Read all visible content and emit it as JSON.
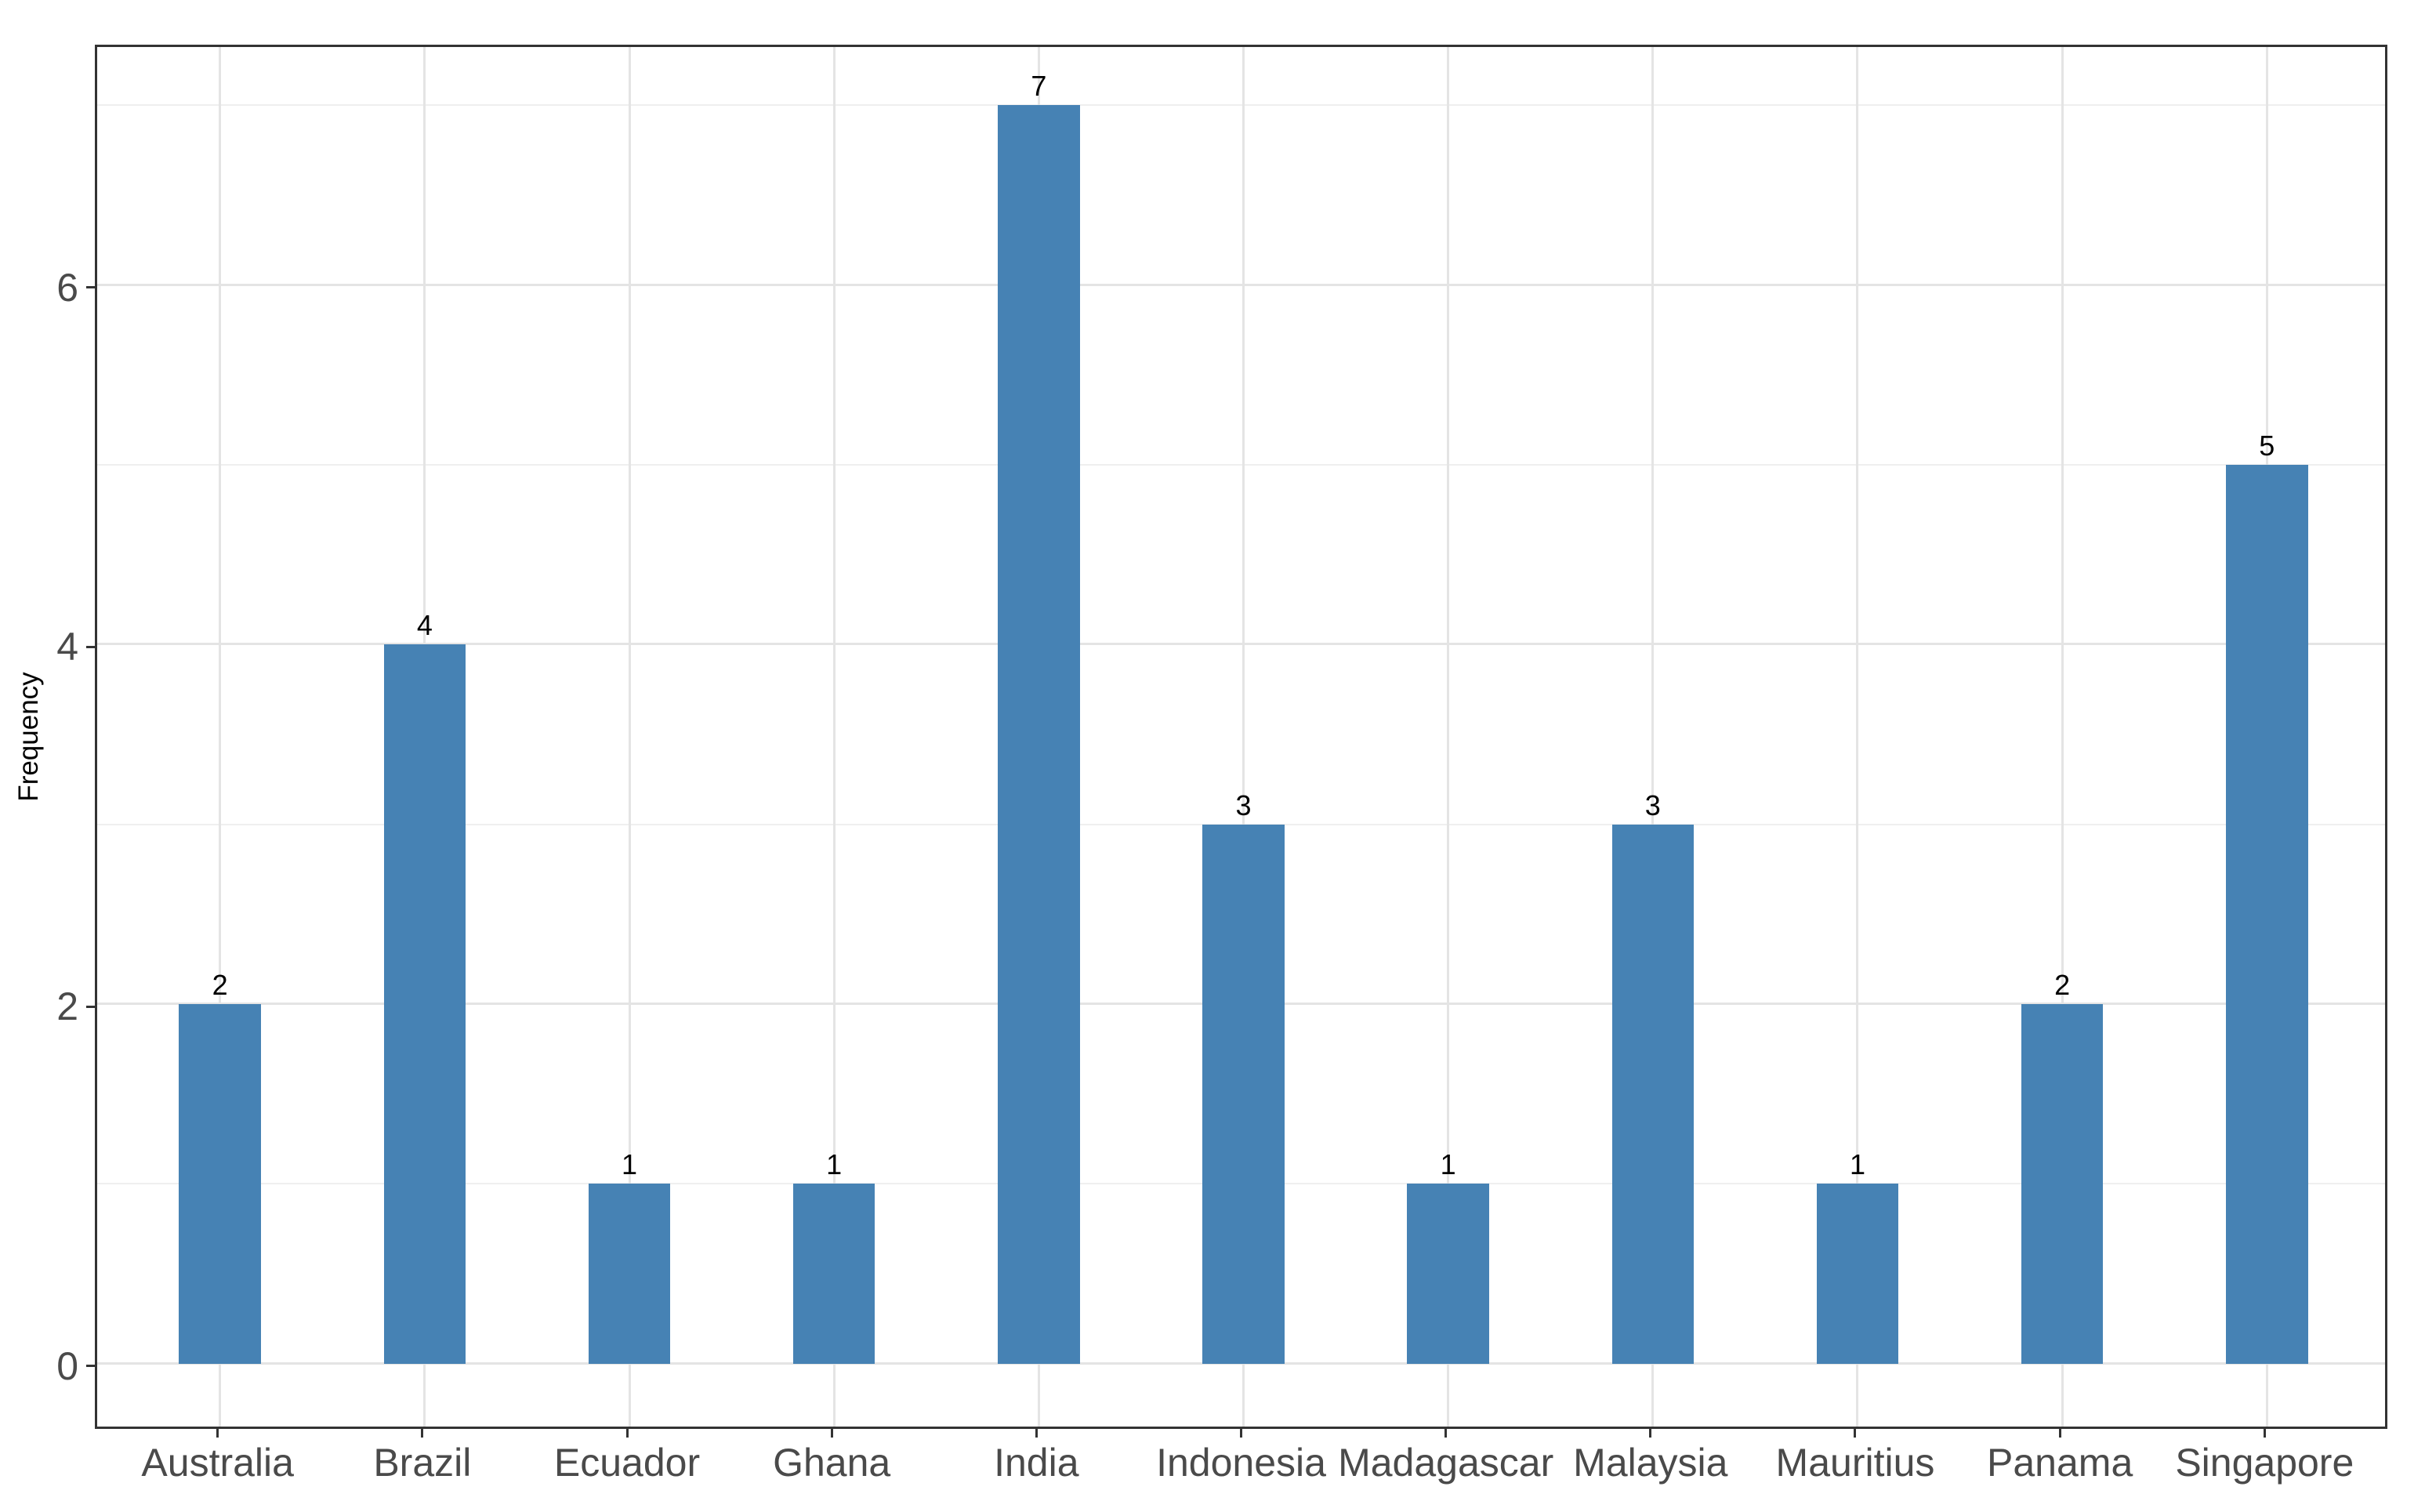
{
  "chart_data": {
    "type": "bar",
    "title": "",
    "xlabel": "",
    "ylabel": "Frequency",
    "categories": [
      "Australia",
      "Brazil",
      "Ecuador",
      "Ghana",
      "India",
      "Indonesia",
      "Madagascar",
      "Malaysia",
      "Mauritius",
      "Panama",
      "Singapore"
    ],
    "values": [
      2,
      4,
      1,
      1,
      7,
      3,
      1,
      3,
      1,
      2,
      5
    ],
    "value_labels": [
      "2",
      "4",
      "1",
      "1",
      "7",
      "3",
      "1",
      "3",
      "1",
      "2",
      "5"
    ],
    "y_ticks": [
      0,
      2,
      4,
      6
    ],
    "y_tick_labels": [
      "0",
      "2",
      "4",
      "6"
    ],
    "y_minor_ticks": [
      1,
      3,
      5,
      7
    ],
    "ylim": [
      0,
      7
    ],
    "y_expand_units": 0.35,
    "x_expand_units": 0.6,
    "bar_width_fraction": 0.4,
    "grid": "on",
    "legend_position": "none",
    "colors": {
      "bar_fill": "#4682B4",
      "panel_background": "#FFFFFF",
      "figure_background": "#FFFFFF",
      "panel_border": "#333333",
      "grid_major": "#E4E4E4",
      "grid_minor": "#EFEFEF",
      "tick_mark": "#333333",
      "tick_label": "#4A4A4A",
      "axis_title": "#000000",
      "value_label": "#000000"
    }
  }
}
